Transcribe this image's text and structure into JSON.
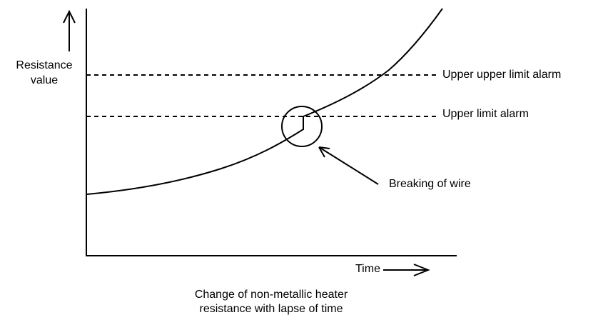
{
  "y_axis_label": [
    "Resistance",
    "value"
  ],
  "x_axis_label": "Time",
  "thresholds": [
    "Upper upper limit alarm",
    "Upper limit alarm"
  ],
  "annotation": "Breaking of wire",
  "caption": [
    "Change of non-metallic heater",
    "resistance with lapse of time"
  ]
}
